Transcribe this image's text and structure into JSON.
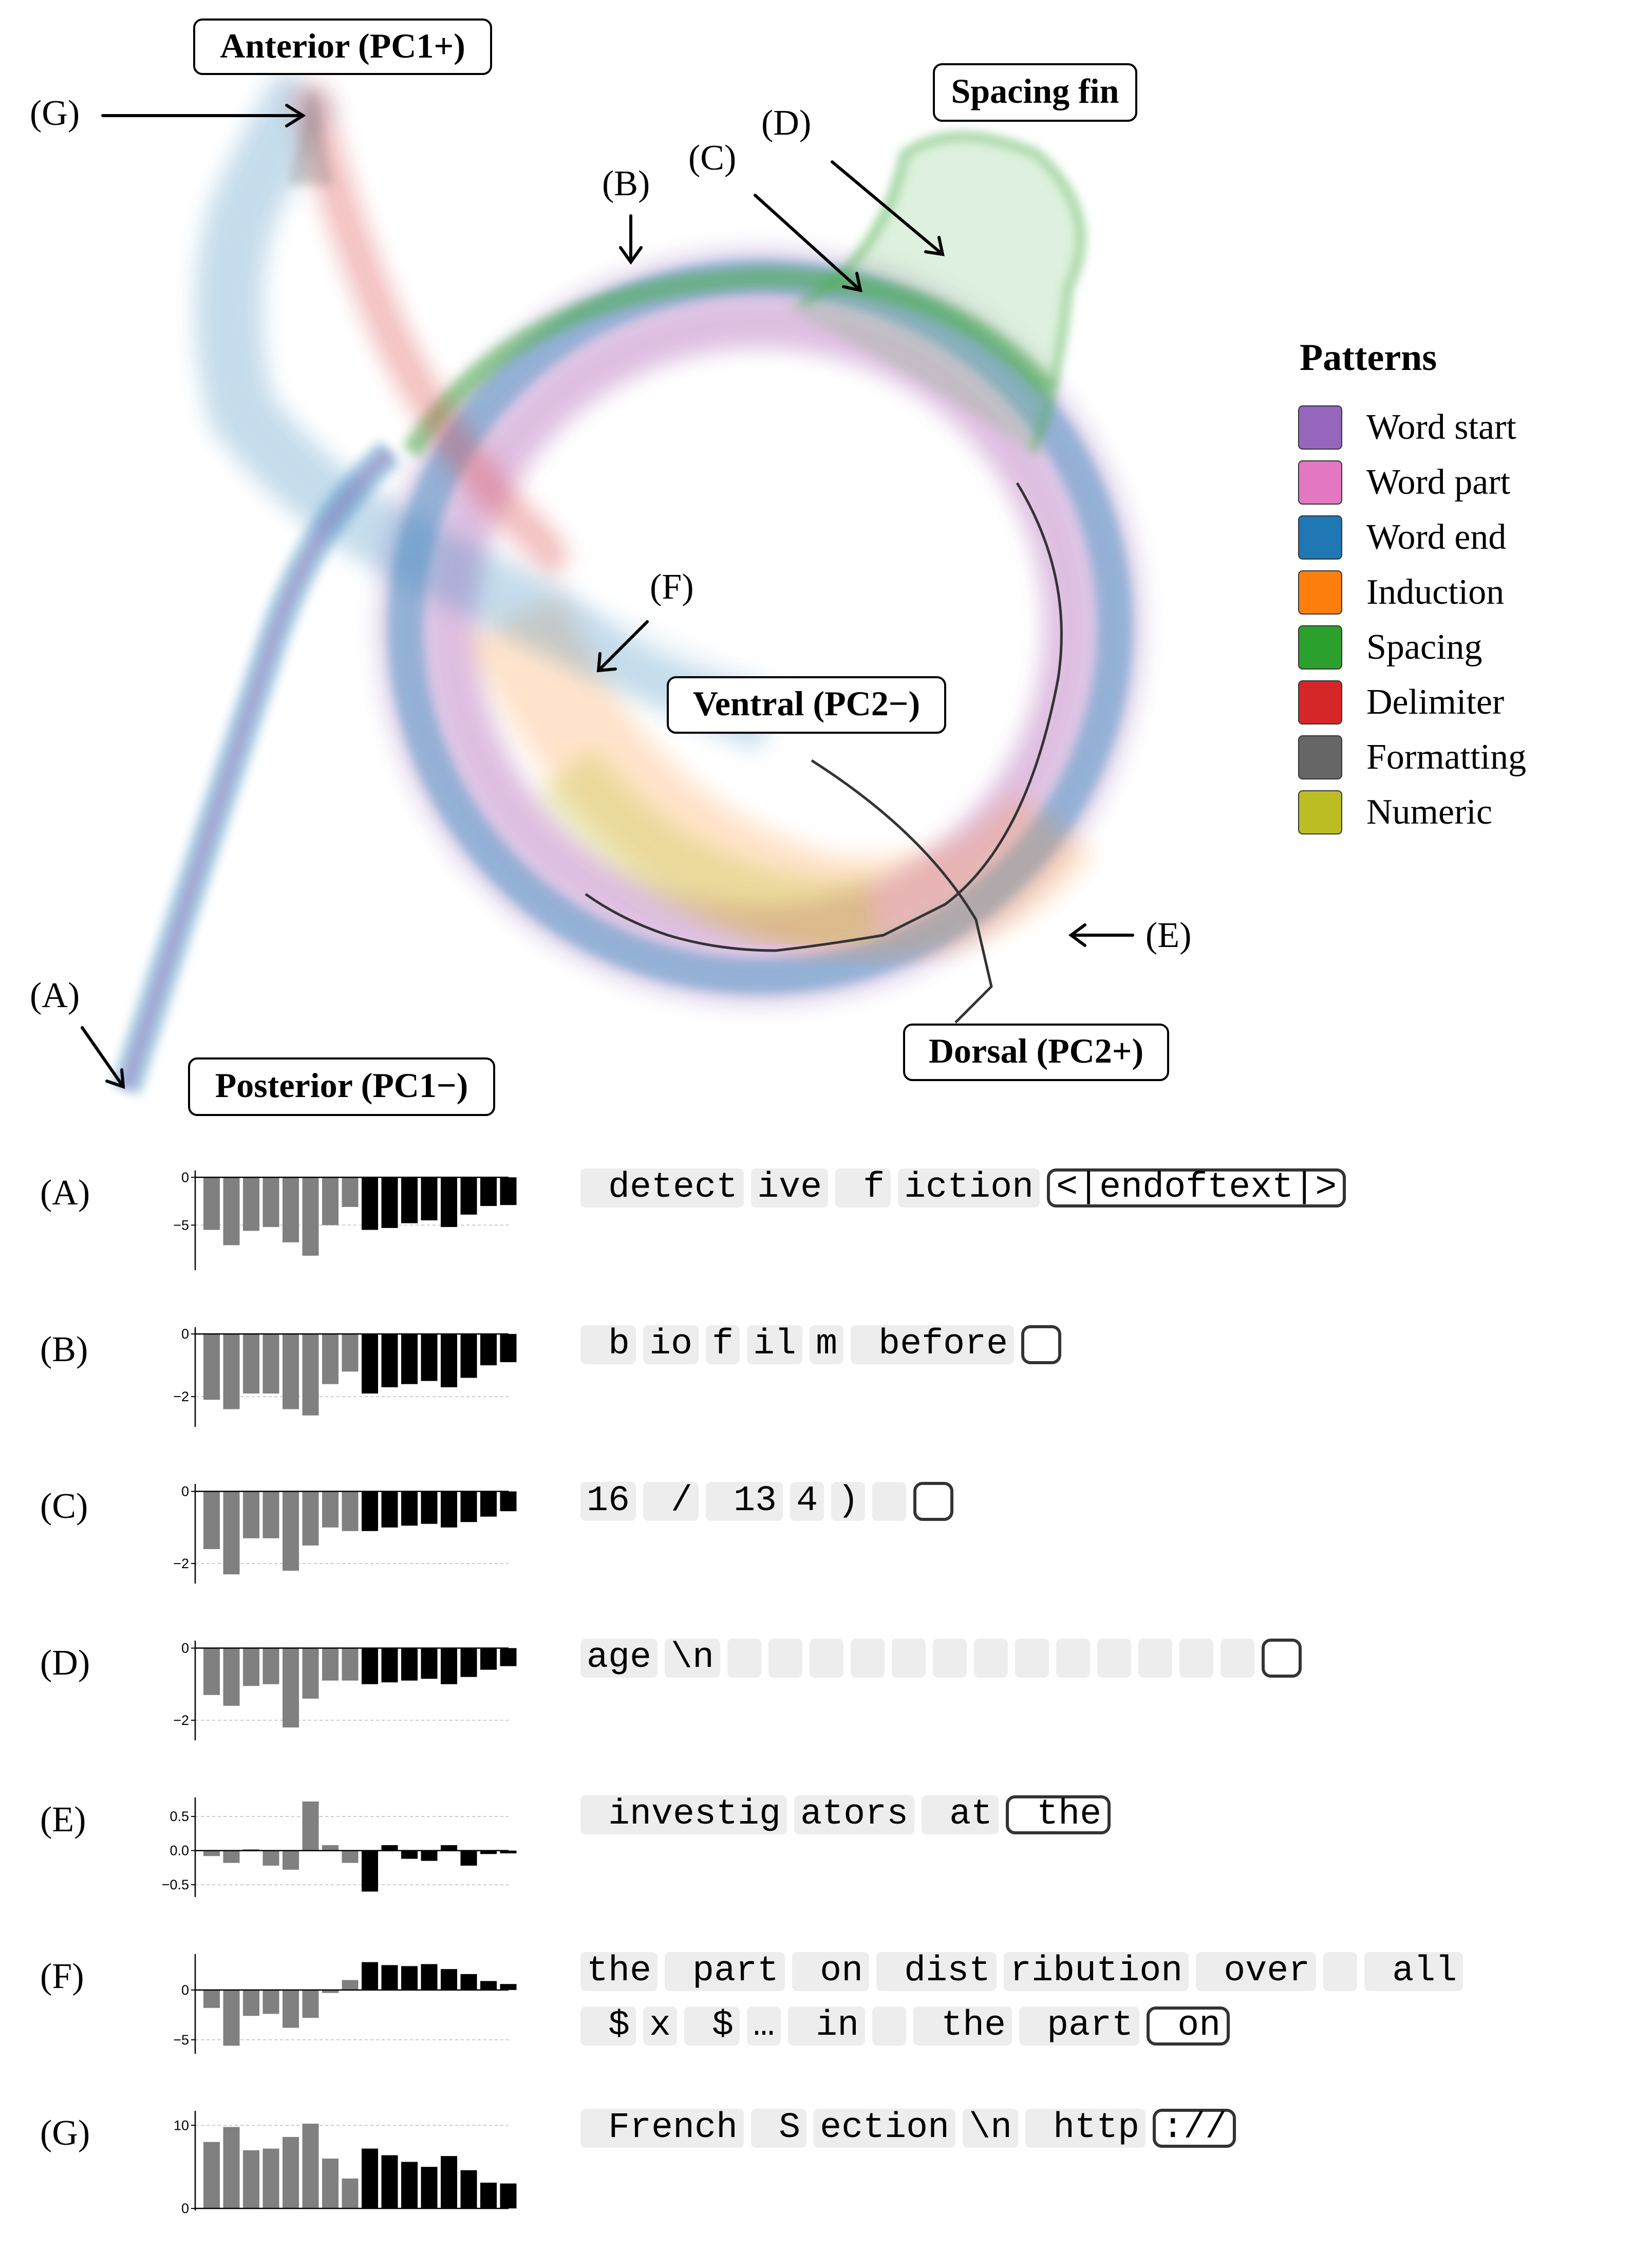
{
  "diagram": {
    "labels": {
      "anterior": "Anterior (PC1+)",
      "posterior": "Posterior (PC1−)",
      "ventral": "Ventral (PC2−)",
      "dorsal": "Dorsal (PC2+)",
      "spacing_fin": "Spacing fin"
    },
    "markers": {
      "A": "(A)",
      "B": "(B)",
      "C": "(C)",
      "D": "(D)",
      "E": "(E)",
      "F": "(F)",
      "G": "(G)"
    },
    "legend": {
      "title": "Patterns",
      "items": [
        {
          "label": "Word start",
          "color": "#9467bd"
        },
        {
          "label": "Word part",
          "color": "#e377c2"
        },
        {
          "label": "Word end",
          "color": "#1f77b4"
        },
        {
          "label": "Induction",
          "color": "#ff7f0e"
        },
        {
          "label": "Spacing",
          "color": "#2ca02c"
        },
        {
          "label": "Delimiter",
          "color": "#d62728"
        },
        {
          "label": "Formatting",
          "color": "#666666"
        },
        {
          "label": "Numeric",
          "color": "#bcbd22"
        }
      ]
    }
  },
  "panels": [
    {
      "label": "(A)",
      "ticks": [
        "0",
        "−5"
      ],
      "tick_values": [
        0,
        -5
      ],
      "ylim": [
        -9.5,
        0.5
      ],
      "values": [
        -5.5,
        -7.1,
        -5.6,
        -5.2,
        -6.8,
        -8.2,
        -5.0,
        -3.1,
        -5.5,
        -5.3,
        -4.8,
        -4.5,
        -5.2,
        -3.9,
        -3.0,
        -2.9
      ],
      "line1": [
        " detect",
        "ive",
        " f",
        "iction",
        "<|endoftext|>"
      ],
      "line2": []
    },
    {
      "label": "(B)",
      "ticks": [
        "0",
        "−2"
      ],
      "tick_values": [
        0,
        -2
      ],
      "ylim": [
        -2.9,
        0.15
      ],
      "values": [
        -2.1,
        -2.4,
        -1.9,
        -1.9,
        -2.4,
        -2.6,
        -1.6,
        -1.2,
        -1.9,
        -1.7,
        -1.6,
        -1.5,
        -1.7,
        -1.4,
        -1.0,
        -0.9
      ],
      "line1": [
        " b",
        "io",
        "f",
        "il",
        "m",
        " before",
        " "
      ],
      "line2": []
    },
    {
      "label": "(C)",
      "ticks": [
        "0",
        "−2"
      ],
      "tick_values": [
        0,
        -2
      ],
      "ylim": [
        -2.5,
        0.15
      ],
      "values": [
        -1.6,
        -2.3,
        -1.3,
        -1.3,
        -2.2,
        -1.5,
        -1.0,
        -1.1,
        -1.1,
        -1.0,
        -0.95,
        -0.9,
        -1.0,
        -0.85,
        -0.7,
        -0.55
      ],
      "line1": [
        "16",
        " /",
        " 13",
        "4",
        ")",
        " ",
        " "
      ],
      "line2": []
    },
    {
      "label": "(D)",
      "ticks": [
        "0",
        "−2"
      ],
      "tick_values": [
        0,
        -2
      ],
      "ylim": [
        -2.5,
        0.15
      ],
      "values": [
        -1.3,
        -1.6,
        -1.05,
        -1.0,
        -2.2,
        -1.4,
        -0.9,
        -0.9,
        -1.0,
        -0.95,
        -0.9,
        -0.85,
        -1.0,
        -0.8,
        -0.6,
        -0.5
      ],
      "line1": [
        "age",
        "\\n",
        " ",
        " ",
        " ",
        " ",
        " ",
        " ",
        " ",
        " ",
        " ",
        " ",
        " ",
        " ",
        " ",
        " "
      ],
      "line2": []
    },
    {
      "label": "(E)",
      "ticks": [
        "0.5",
        "0.0",
        "−0.5"
      ],
      "tick_values": [
        0.5,
        0,
        -0.5
      ],
      "ylim": [
        -0.65,
        0.75
      ],
      "values": [
        -0.08,
        -0.18,
        0.02,
        -0.22,
        -0.28,
        0.72,
        0.08,
        -0.18,
        -0.6,
        0.08,
        -0.12,
        -0.15,
        0.08,
        -0.22,
        -0.05,
        -0.04
      ],
      "line1": [
        " investig",
        "ators",
        " at",
        " the"
      ],
      "line2": []
    },
    {
      "label": "(F)",
      "ticks": [
        "0",
        "−5"
      ],
      "tick_values": [
        0,
        -5
      ],
      "ylim": [
        -6.2,
        3.4
      ],
      "values": [
        -1.8,
        -5.6,
        -2.6,
        -2.4,
        -3.8,
        -2.8,
        -0.3,
        1.0,
        2.8,
        2.5,
        2.4,
        2.6,
        2.1,
        1.6,
        0.9,
        0.6
      ],
      "line1": [
        "the",
        " part",
        " on",
        " dist",
        "ribution",
        " over",
        " ",
        " all"
      ],
      "line2": [
        " $",
        "x",
        " $",
        "…",
        " in",
        " ",
        " the",
        " part",
        " on"
      ]
    },
    {
      "label": "(G)",
      "ticks": [
        "10",
        "0"
      ],
      "tick_values": [
        10,
        0
      ],
      "ylim": [
        0,
        11.5
      ],
      "values": [
        8.0,
        9.8,
        7.0,
        7.2,
        8.6,
        10.2,
        6.0,
        3.6,
        7.2,
        6.4,
        5.6,
        5.0,
        6.3,
        4.6,
        3.1,
        3.0
      ],
      "line1": [
        " French",
        " S",
        "ection",
        "\\n",
        " http",
        "://"
      ],
      "line2": []
    }
  ]
}
